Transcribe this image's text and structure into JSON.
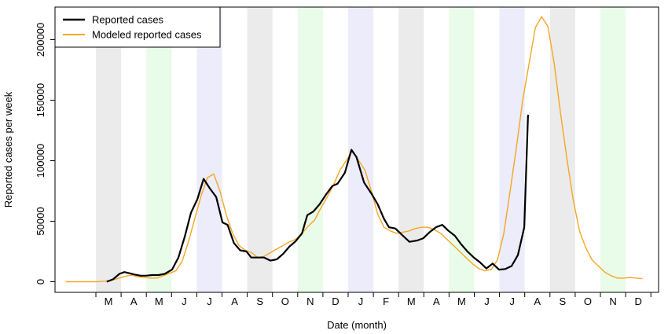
{
  "chart_data": {
    "type": "line",
    "title": "",
    "xlabel": "Date (month)",
    "ylabel": "Reported cases per week",
    "ylim": [
      0,
      220000
    ],
    "yticks": [
      0,
      50000,
      100000,
      150000,
      200000
    ],
    "ytick_labels": [
      "0",
      "50000",
      "100000",
      "150000",
      "200000"
    ],
    "x_unit": "month index (0 = start of M)",
    "month_labels": [
      "M",
      "A",
      "M",
      "J",
      "J",
      "A",
      "S",
      "O",
      "N",
      "D",
      "J",
      "F",
      "M",
      "A",
      "M",
      "J",
      "J",
      "A",
      "S",
      "O",
      "N",
      "D"
    ],
    "shaded_months": [
      {
        "month": 0,
        "color": "#ebebeb"
      },
      {
        "month": 2,
        "color": "#e9fbe9"
      },
      {
        "month": 4,
        "color": "#ececfb"
      },
      {
        "month": 6,
        "color": "#ebebeb"
      },
      {
        "month": 8,
        "color": "#e9fbe9"
      },
      {
        "month": 10,
        "color": "#ececfb"
      },
      {
        "month": 12,
        "color": "#ebebeb"
      },
      {
        "month": 14,
        "color": "#e9fbe9"
      },
      {
        "month": 16,
        "color": "#ececfb"
      },
      {
        "month": 18,
        "color": "#ebebeb"
      },
      {
        "month": 20,
        "color": "#e9fbe9"
      }
    ],
    "legend": {
      "placement": "top-left",
      "entries": [
        "Reported cases",
        "Modeled reported cases"
      ]
    },
    "series": [
      {
        "name": "Reported cases",
        "color": "#000000",
        "x": [
          0.43,
          0.68,
          0.93,
          1.13,
          1.33,
          1.53,
          1.78,
          1.98,
          2.23,
          2.48,
          2.73,
          3.02,
          3.27,
          3.52,
          3.77,
          4.02,
          4.27,
          4.52,
          4.77,
          5.02,
          5.22,
          5.47,
          5.72,
          5.97,
          6.16,
          6.42,
          6.67,
          6.92,
          7.17,
          7.42,
          7.67,
          7.92,
          8.17,
          8.38,
          8.62,
          8.87,
          9.12,
          9.37,
          9.58,
          9.87,
          10.13,
          10.33,
          10.63,
          10.92,
          11.17,
          11.42,
          11.62,
          11.87,
          12.17,
          12.43,
          12.73,
          12.98,
          13.23,
          13.48,
          13.73,
          13.98,
          14.23,
          14.48,
          14.73,
          14.98,
          15.23,
          15.48,
          15.73,
          15.98,
          16.23,
          16.48,
          16.73,
          16.98,
          17.13
        ],
        "values": [
          0,
          2000,
          6500,
          8000,
          7000,
          6000,
          5000,
          5000,
          5500,
          5500,
          6500,
          10000,
          20000,
          37000,
          57000,
          68000,
          85000,
          77000,
          70000,
          49000,
          47000,
          32000,
          26000,
          25000,
          20000,
          20000,
          20000,
          17500,
          18500,
          23000,
          29000,
          33500,
          40000,
          55000,
          58000,
          64000,
          72000,
          79000,
          81000,
          90000,
          109000,
          103000,
          82000,
          73000,
          64000,
          52000,
          45000,
          44000,
          38000,
          33000,
          34000,
          36000,
          41000,
          45000,
          47000,
          42000,
          38000,
          31000,
          25000,
          20000,
          16000,
          11000,
          15000,
          10000,
          10500,
          13000,
          22000,
          45000,
          138000
        ]
      },
      {
        "name": "Modeled reported cases",
        "color": "#f5a623",
        "x": [
          -1.2,
          -0.6,
          0.0,
          0.42,
          0.67,
          0.92,
          1.17,
          1.42,
          1.67,
          1.92,
          2.17,
          2.42,
          2.67,
          2.92,
          3.17,
          3.42,
          3.67,
          3.92,
          4.17,
          4.42,
          4.67,
          4.92,
          5.17,
          5.42,
          5.67,
          5.92,
          6.17,
          6.42,
          6.67,
          6.92,
          7.17,
          7.42,
          7.67,
          7.92,
          8.17,
          8.42,
          8.67,
          8.92,
          9.17,
          9.42,
          9.67,
          9.92,
          10.17,
          10.42,
          10.67,
          10.92,
          11.17,
          11.42,
          11.67,
          11.92,
          12.17,
          12.42,
          12.67,
          12.92,
          13.17,
          13.42,
          13.67,
          13.92,
          14.17,
          14.42,
          14.67,
          14.92,
          15.17,
          15.42,
          15.67,
          15.92,
          16.17,
          16.42,
          16.67,
          16.92,
          17.17,
          17.42,
          17.67,
          17.92,
          18.17,
          18.42,
          18.67,
          18.92,
          19.17,
          19.42,
          19.67,
          19.92,
          20.17,
          20.42,
          20.67,
          20.92,
          21.17,
          21.42,
          21.67
        ],
        "values": [
          0,
          0,
          0,
          500,
          1500,
          3000,
          4500,
          5500,
          4000,
          3500,
          3000,
          3000,
          5000,
          7000,
          9000,
          17000,
          33000,
          52000,
          71000,
          86000,
          89000,
          75000,
          55000,
          40000,
          30000,
          26000,
          24000,
          20000,
          21000,
          24000,
          27000,
          30000,
          33000,
          35000,
          40000,
          46000,
          51000,
          61000,
          70000,
          80000,
          92000,
          100000,
          108000,
          100000,
          92000,
          75000,
          56000,
          45000,
          42000,
          40000,
          41000,
          42000,
          44000,
          45000,
          45000,
          43000,
          40000,
          35000,
          30000,
          25000,
          20000,
          15000,
          11000,
          9000,
          10000,
          18000,
          40000,
          75000,
          111000,
          150000,
          180000,
          210000,
          219000,
          211000,
          180000,
          139000,
          102000,
          68000,
          42000,
          28000,
          18000,
          13000,
          8000,
          5000,
          3000,
          3000,
          3500,
          3000,
          2500
        ]
      }
    ]
  }
}
